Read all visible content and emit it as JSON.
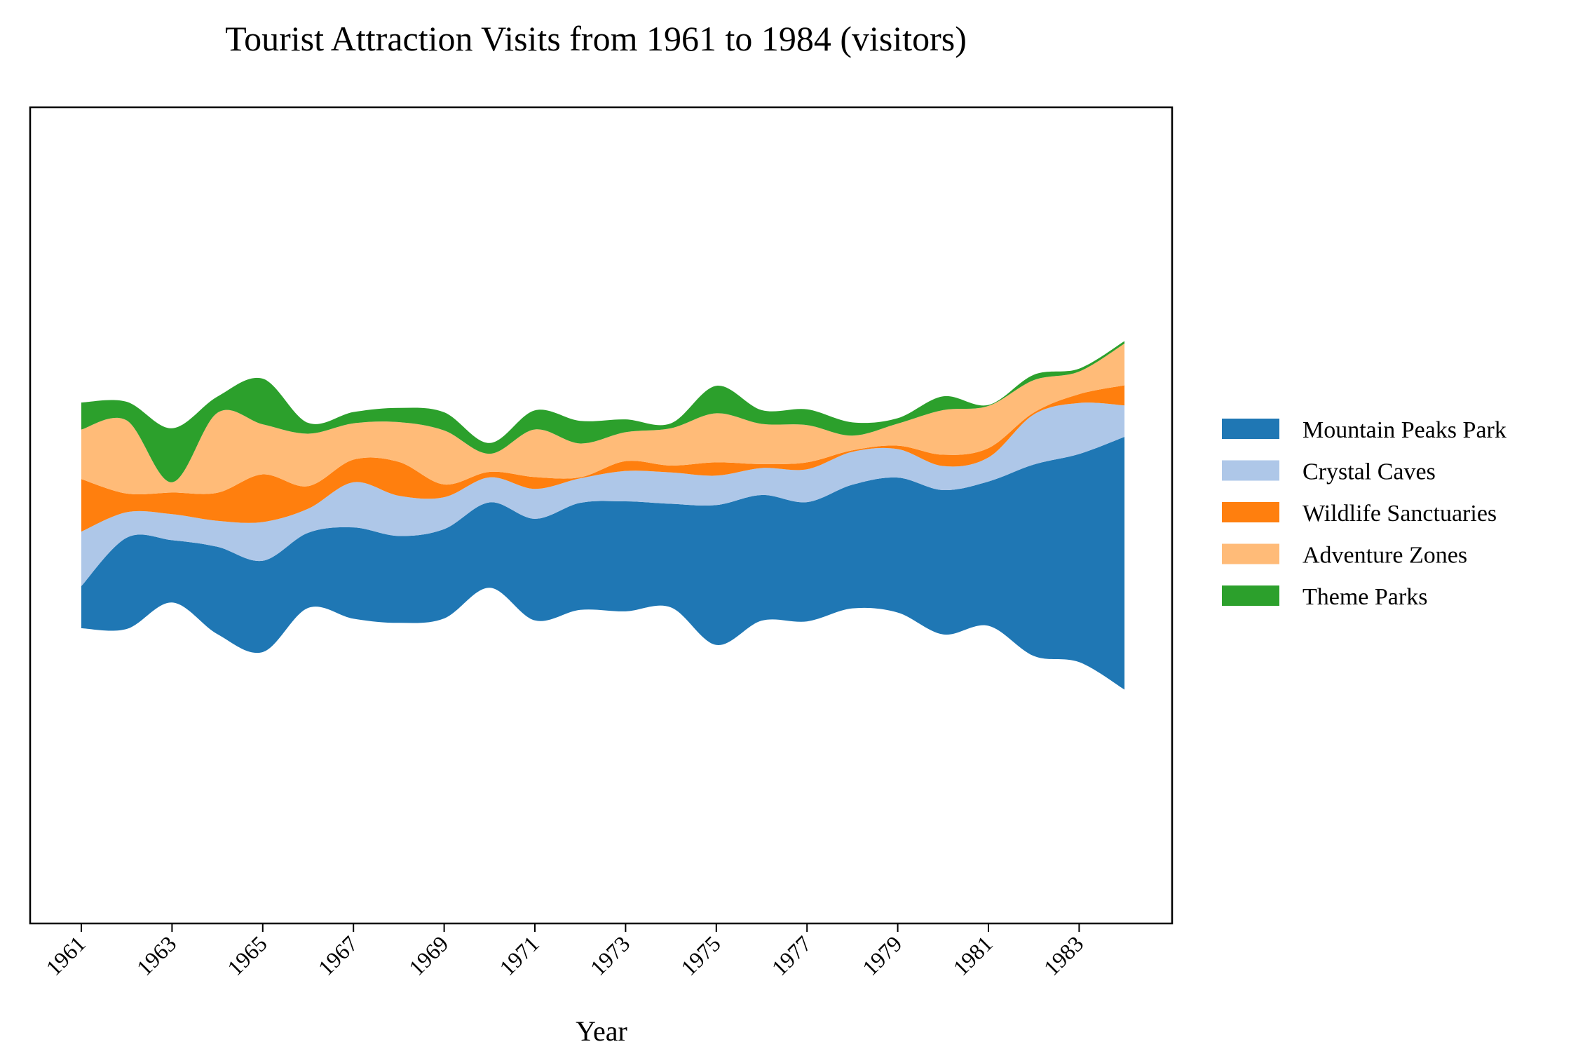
{
  "chart_data": {
    "type": "streamgraph",
    "title": "Tourist Attraction Visits from 1961 to 1984 (visitors)",
    "xlabel": "Year",
    "ylabel": "",
    "x": [
      1961,
      1962,
      1963,
      1964,
      1965,
      1966,
      1967,
      1968,
      1969,
      1970,
      1971,
      1972,
      1973,
      1974,
      1975,
      1976,
      1977,
      1978,
      1979,
      1980,
      1981,
      1982,
      1983,
      1984
    ],
    "x_ticks": [
      "1961",
      "1963",
      "1965",
      "1967",
      "1969",
      "1971",
      "1973",
      "1975",
      "1977",
      "1979",
      "1981",
      "1983"
    ],
    "baseline": "symmetric",
    "series": [
      {
        "name": "Mountain Peaks Park",
        "color": "#1f77b4",
        "values": [
          86,
          186,
          127,
          178,
          186,
          153,
          186,
          177,
          182,
          174,
          207,
          218,
          224,
          211,
          285,
          256,
          243,
          252,
          275,
          294,
          294,
          390,
          424,
          515
        ]
      },
      {
        "name": "Crystal Caves",
        "color": "#aec7e8",
        "values": [
          111,
          52,
          53,
          53,
          79,
          49,
          92,
          82,
          65,
          51,
          61,
          50,
          62,
          64,
          60,
          55,
          67,
          67,
          58,
          49,
          49,
          102,
          104,
          64
        ]
      },
      {
        "name": "Wildlife Sanctuaries",
        "color": "#ff7f0e",
        "values": [
          107,
          38,
          44,
          57,
          97,
          46,
          46,
          69,
          26,
          11,
          24,
          2,
          20,
          14,
          27,
          8,
          14,
          3,
          7,
          23,
          19,
          4,
          18,
          41
        ]
      },
      {
        "name": "Adventure Zones",
        "color": "#ffbb78",
        "values": [
          101,
          149,
          21,
          163,
          102,
          107,
          74,
          81,
          110,
          37,
          97,
          69,
          59,
          76,
          100,
          82,
          76,
          30,
          45,
          91,
          86,
          66,
          46,
          85
        ]
      },
      {
        "name": "Theme Parks",
        "color": "#2ca02c",
        "values": [
          55,
          38,
          110,
          33,
          93,
          22,
          23,
          29,
          37,
          22,
          39,
          46,
          26,
          10,
          56,
          28,
          32,
          27,
          11,
          28,
          2,
          11,
          6,
          5
        ]
      }
    ],
    "legend_position": "center-right",
    "grid": false
  }
}
